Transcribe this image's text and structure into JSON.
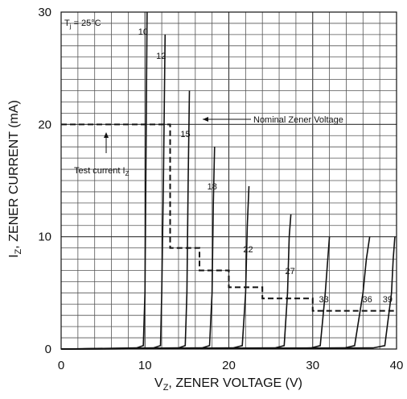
{
  "chart_data": {
    "type": "line",
    "title": "",
    "xlabel": "V",
    "xlabel_sub": "Z",
    "xlabel_rest": ", ZENER VOLTAGE (V)",
    "ylabel": "I",
    "ylabel_sub": "Z",
    "ylabel_rest": ", ZENER CURRENT (mA)",
    "xlim": [
      0,
      40
    ],
    "ylim": [
      0,
      30
    ],
    "xticks": [
      0,
      10,
      20,
      30,
      40
    ],
    "yticks": [
      0,
      10,
      20,
      30
    ],
    "grid": true,
    "condition": {
      "text_main": "T",
      "text_sub": "j",
      "text_rest": " = 25°C"
    },
    "annotations": {
      "nominal_voltage": "Nominal Zener Voltage",
      "test_current_main": "Test current I",
      "test_current_sub": "Z"
    },
    "series": [
      {
        "name": "10",
        "x": [
          0,
          9.0,
          9.8,
          10.0,
          10.1,
          10.25
        ],
        "y": [
          0,
          0.1,
          0.3,
          5,
          15,
          30
        ]
      },
      {
        "name": "12",
        "x": [
          0,
          11.0,
          11.85,
          12.0,
          12.2,
          12.4
        ],
        "y": [
          0,
          0.1,
          0.3,
          5,
          15,
          28
        ]
      },
      {
        "name": "15",
        "x": [
          0,
          14.0,
          14.8,
          15.0,
          15.15,
          15.3
        ],
        "y": [
          0,
          0.1,
          0.3,
          5,
          15,
          23
        ]
      },
      {
        "name": "18",
        "x": [
          0,
          16.8,
          17.7,
          18.0,
          18.15,
          18.3
        ],
        "y": [
          0,
          0.1,
          0.3,
          5,
          13,
          18
        ]
      },
      {
        "name": "22",
        "x": [
          0,
          20.5,
          21.6,
          22.0,
          22.2,
          22.4
        ],
        "y": [
          0,
          0.1,
          0.3,
          5,
          11,
          14.5
        ]
      },
      {
        "name": "27",
        "x": [
          0,
          25.5,
          26.6,
          27.0,
          27.2,
          27.4
        ],
        "y": [
          0,
          0.1,
          0.3,
          5,
          10,
          12
        ]
      },
      {
        "name": "33",
        "x": [
          0,
          29.8,
          30.9,
          31.5,
          31.8,
          32.0
        ],
        "y": [
          0,
          0.1,
          0.3,
          5,
          8,
          10
        ]
      },
      {
        "name": "36",
        "x": [
          0,
          33.8,
          35.0,
          36.0,
          36.4,
          36.8
        ],
        "y": [
          0,
          0.1,
          0.3,
          5,
          8,
          10
        ]
      },
      {
        "name": "39",
        "x": [
          0,
          37.2,
          38.6,
          39.4,
          39.6,
          39.8
        ],
        "y": [
          0,
          0.1,
          0.3,
          5,
          8,
          10
        ]
      }
    ],
    "test_current_line": {
      "x": [
        0,
        13.0,
        13.0,
        16.5,
        16.5,
        20.0,
        20.0,
        24.0,
        24.0,
        30.0,
        30.0,
        40.0
      ],
      "y": [
        20,
        20,
        9.0,
        9.0,
        7.0,
        7.0,
        5.5,
        5.5,
        4.5,
        4.5,
        3.4,
        3.4
      ]
    }
  }
}
